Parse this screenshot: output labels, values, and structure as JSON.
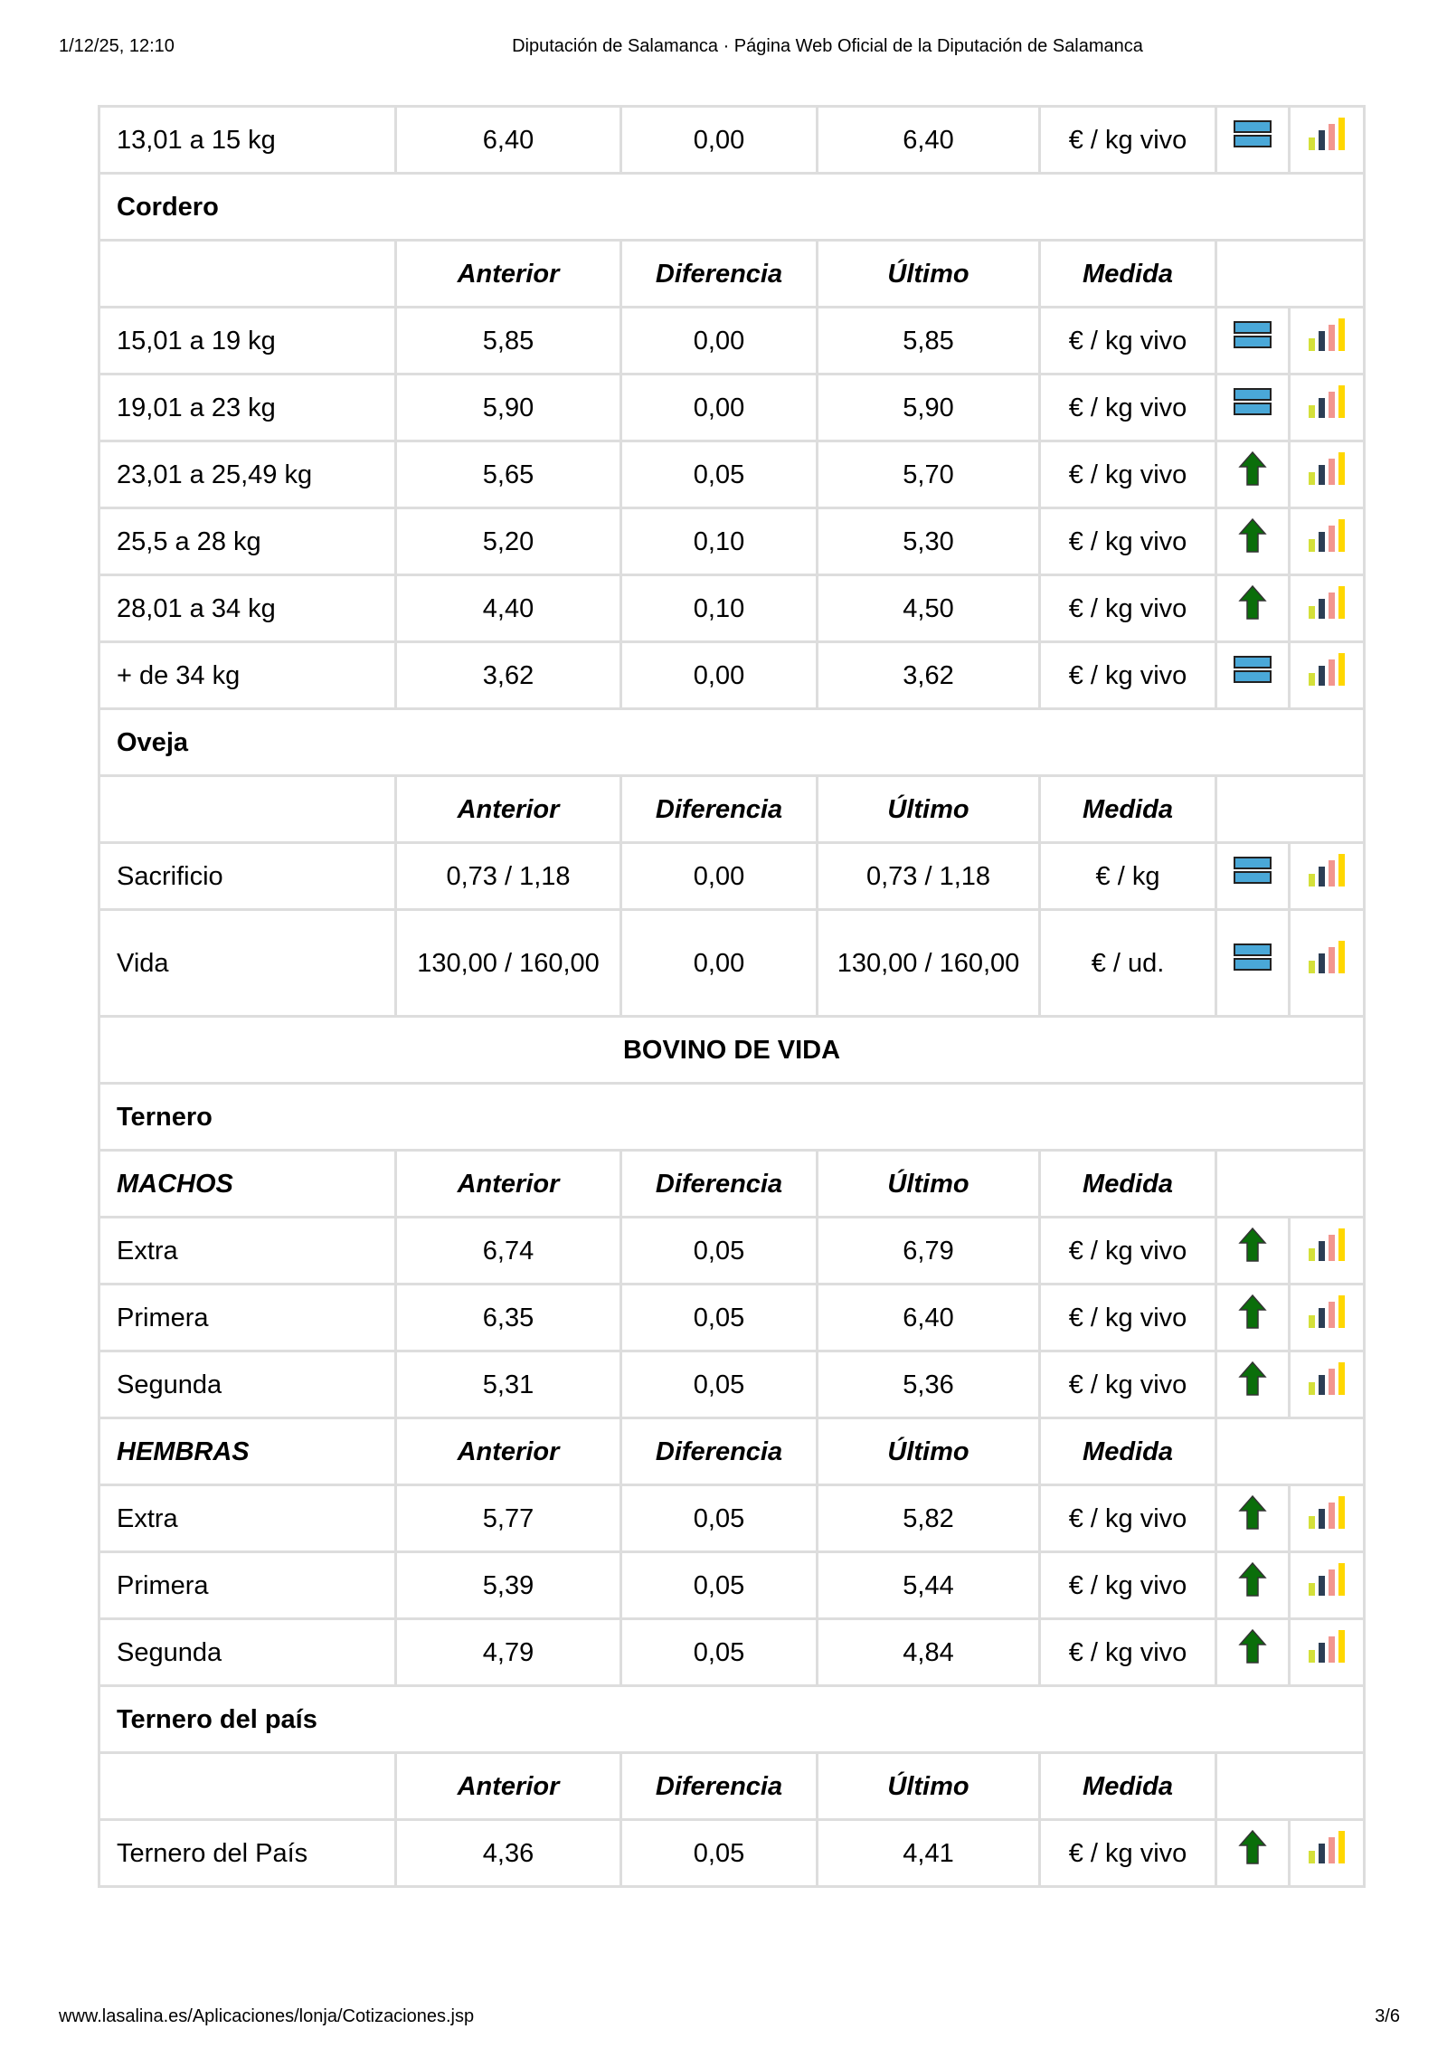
{
  "header": {
    "datetime": "1/12/25, 12:10",
    "title": "Diputación de Salamanca · Página Web Oficial de la Diputación de Salamanca"
  },
  "footer": {
    "url": "www.lasalina.es/Aplicaciones/lonja/Cotizaciones.jsp",
    "page": "3/6"
  },
  "colors": {
    "equal": "#4aa8d8",
    "up": "#0a6e0a",
    "bars": [
      "#d4e03a",
      "#2c3e55",
      "#f29690",
      "#ffd700"
    ]
  },
  "rows": [
    {
      "type": "data",
      "label": "13,01 a 15 kg",
      "anterior": "6,40",
      "diferencia": "0,00",
      "ultimo": "6,40",
      "medida": "€ / kg vivo",
      "trend": "equal-icon"
    },
    {
      "type": "sec",
      "label": "Cordero"
    },
    {
      "type": "head",
      "label": "",
      "cols": [
        "Anterior",
        "Diferencia",
        "Último",
        "Medida"
      ]
    },
    {
      "type": "data",
      "label": "15,01 a 19 kg",
      "anterior": "5,85",
      "diferencia": "0,00",
      "ultimo": "5,85",
      "medida": "€ / kg vivo",
      "trend": "equal-icon"
    },
    {
      "type": "data",
      "label": "19,01 a 23 kg",
      "anterior": "5,90",
      "diferencia": "0,00",
      "ultimo": "5,90",
      "medida": "€ / kg vivo",
      "trend": "equal-icon"
    },
    {
      "type": "data",
      "label": "23,01 a 25,49 kg",
      "anterior": "5,65",
      "diferencia": "0,05",
      "ultimo": "5,70",
      "medida": "€ / kg vivo",
      "trend": "arrow-up-icon"
    },
    {
      "type": "data",
      "label": "25,5 a 28 kg",
      "anterior": "5,20",
      "diferencia": "0,10",
      "ultimo": "5,30",
      "medida": "€ / kg vivo",
      "trend": "arrow-up-icon"
    },
    {
      "type": "data",
      "label": "28,01 a 34 kg",
      "anterior": "4,40",
      "diferencia": "0,10",
      "ultimo": "4,50",
      "medida": "€ / kg vivo",
      "trend": "arrow-up-icon"
    },
    {
      "type": "data",
      "label": "+ de 34 kg",
      "anterior": "3,62",
      "diferencia": "0,00",
      "ultimo": "3,62",
      "medida": "€ / kg vivo",
      "trend": "equal-icon"
    },
    {
      "type": "sec",
      "label": "Oveja"
    },
    {
      "type": "head",
      "label": "",
      "cols": [
        "Anterior",
        "Diferencia",
        "Último",
        "Medida"
      ]
    },
    {
      "type": "data",
      "label": "Sacrificio",
      "anterior": "0,73 / 1,18",
      "diferencia": "0,00",
      "ultimo": "0,73 / 1,18",
      "medida": "€ / kg",
      "trend": "equal-icon"
    },
    {
      "type": "data",
      "tall": true,
      "label": "Vida",
      "anterior": "130,00 / 160,00",
      "diferencia": "0,00",
      "ultimo": "130,00 / 160,00",
      "medida": "€ / ud.",
      "trend": "equal-icon"
    },
    {
      "type": "ttl",
      "label": "BOVINO DE VIDA"
    },
    {
      "type": "sec",
      "label": "Ternero"
    },
    {
      "type": "head",
      "label": "MACHOS",
      "cols": [
        "Anterior",
        "Diferencia",
        "Último",
        "Medida"
      ]
    },
    {
      "type": "data",
      "label": "Extra",
      "anterior": "6,74",
      "diferencia": "0,05",
      "ultimo": "6,79",
      "medida": "€ / kg vivo",
      "trend": "arrow-up-icon"
    },
    {
      "type": "data",
      "label": "Primera",
      "anterior": "6,35",
      "diferencia": "0,05",
      "ultimo": "6,40",
      "medida": "€ / kg vivo",
      "trend": "arrow-up-icon"
    },
    {
      "type": "data",
      "label": "Segunda",
      "anterior": "5,31",
      "diferencia": "0,05",
      "ultimo": "5,36",
      "medida": "€ / kg vivo",
      "trend": "arrow-up-icon"
    },
    {
      "type": "head",
      "label": "HEMBRAS",
      "cols": [
        "Anterior",
        "Diferencia",
        "Último",
        "Medida"
      ]
    },
    {
      "type": "data",
      "label": "Extra",
      "anterior": "5,77",
      "diferencia": "0,05",
      "ultimo": "5,82",
      "medida": "€ / kg vivo",
      "trend": "arrow-up-icon"
    },
    {
      "type": "data",
      "label": "Primera",
      "anterior": "5,39",
      "diferencia": "0,05",
      "ultimo": "5,44",
      "medida": "€ / kg vivo",
      "trend": "arrow-up-icon"
    },
    {
      "type": "data",
      "label": "Segunda",
      "anterior": "4,79",
      "diferencia": "0,05",
      "ultimo": "4,84",
      "medida": "€ / kg vivo",
      "trend": "arrow-up-icon"
    },
    {
      "type": "sec",
      "label": "Ternero del país"
    },
    {
      "type": "head",
      "label": "",
      "cols": [
        "Anterior",
        "Diferencia",
        "Último",
        "Medida"
      ]
    },
    {
      "type": "data",
      "label": "Ternero del País",
      "anterior": "4,36",
      "diferencia": "0,05",
      "ultimo": "4,41",
      "medida": "€ / kg vivo",
      "trend": "arrow-up-icon"
    }
  ]
}
